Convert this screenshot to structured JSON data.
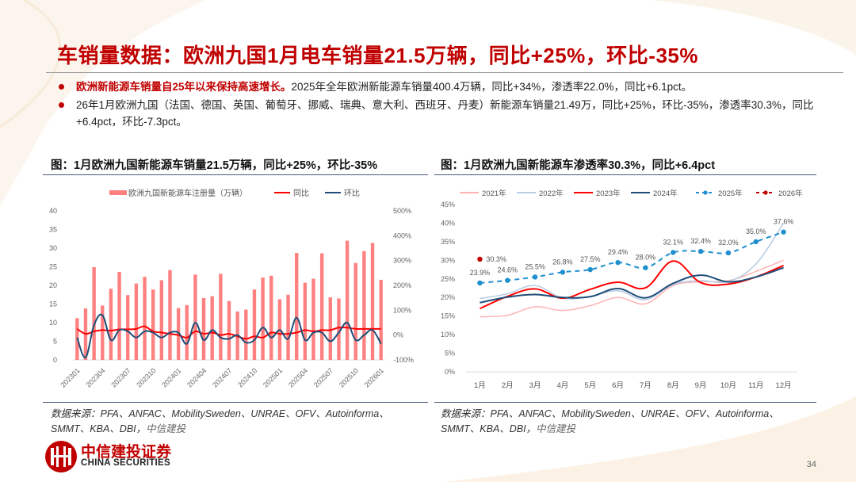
{
  "page": {
    "title": "车销量数据：欧洲九国1月电车销量21.5万辆，同比+25%，环比-35%",
    "page_number": "34",
    "colors": {
      "brand_red": "#c00000",
      "rule": "#4a5a7a"
    }
  },
  "bullets": [
    {
      "highlight": "欧洲新能源车销量自25年以来保持高速增长。",
      "text": "2025年全年欧洲新能源车销量400.4万辆，同比+34%，渗透率22.0%，同比+6.1pct。"
    },
    {
      "highlight": "",
      "text": "26年1月欧洲九国（法国、德国、英国、葡萄牙、挪威、瑞典、意大利、西班牙、丹麦）新能源车销量21.49万，同比+25%，环比-35%，渗透率30.3%，同比+6.4pct，环比-7.3pct。"
    }
  ],
  "left_figure": {
    "title": "图：1月欧洲九国新能源车销量21.5万辆，同比+25%，环比-35%",
    "source_prefix": "数据来源：PFA、ANFAC、MobilitySweden、UNRAE、OFV、Autoinforma、SMMT、KBA、DBI，",
    "source_suffix": "中信建投"
  },
  "right_figure": {
    "title": "图：1月欧洲九国新能源车渗透率30.3%，同比+6.4pct",
    "source_prefix": "数据来源：PFA、ANFAC、MobilitySweden、UNRAE、OFV、Autoinforma、SMMT、KBA、DBI，",
    "source_suffix": "中信建投"
  },
  "logo": {
    "cn": "中信建投证券",
    "en": "CHINA SECURITIES"
  },
  "chart_data": [
    {
      "type": "bar",
      "title": "图：1月欧洲九国新能源车销量21.5万辆，同比+25%，环比-35%",
      "legend_position": "top",
      "categories": [
        "202301",
        "202302",
        "202303",
        "202304",
        "202305",
        "202306",
        "202307",
        "202308",
        "202309",
        "202310",
        "202311",
        "202312",
        "202401",
        "202402",
        "202403",
        "202404",
        "202405",
        "202406",
        "202407",
        "202408",
        "202409",
        "202410",
        "202411",
        "202412",
        "202501",
        "202502",
        "202503",
        "202504",
        "202505",
        "202506",
        "202507",
        "202508",
        "202509",
        "202510",
        "202511",
        "202512",
        "202601"
      ],
      "tick_labels": [
        "202301",
        "202304",
        "202307",
        "202310",
        "202401",
        "202404",
        "202407",
        "202410",
        "202501",
        "202504",
        "202507",
        "202510",
        "202601"
      ],
      "ylim": [
        0,
        40
      ],
      "yticks": [
        "0",
        "5",
        "10",
        "15",
        "20",
        "25",
        "30",
        "35",
        "40"
      ],
      "y2lim": [
        -100,
        500
      ],
      "y2ticks": [
        "-100%",
        "0%",
        "100%",
        "200%",
        "300%",
        "400%",
        "500%"
      ],
      "series": [
        {
          "name": "欧洲九国新能源车注册量（万辆）",
          "type": "bar",
          "axis": "left",
          "color": "#ff8080",
          "values": [
            11.2,
            13.8,
            24.9,
            14.6,
            19.1,
            23.6,
            17.4,
            20.5,
            22.3,
            18.9,
            21.4,
            24.1,
            13.9,
            14.7,
            22.9,
            16.6,
            17.1,
            23.1,
            15.8,
            13.0,
            13.5,
            18.9,
            22.1,
            22.6,
            16.3,
            17.5,
            28.7,
            20.7,
            21.8,
            28.6,
            16.8,
            16.5,
            32.0,
            26.0,
            29.2,
            31.4,
            21.5
          ]
        },
        {
          "name": "同比",
          "type": "line",
          "axis": "right",
          "color": "#ff0000",
          "values": [
            25,
            5,
            15,
            20,
            18,
            23,
            23,
            25,
            35,
            15,
            10,
            5,
            0,
            -10,
            15,
            5,
            10,
            0,
            5,
            -5,
            -15,
            -5,
            -10,
            10,
            5,
            5,
            10,
            20,
            15,
            20,
            20,
            30,
            30,
            25,
            25,
            25,
            25
          ]
        },
        {
          "name": "环比",
          "type": "line",
          "axis": "right",
          "color": "#1f4e79",
          "values": [
            -10,
            -90,
            40,
            80,
            -20,
            20,
            15,
            -10,
            15,
            10,
            -10,
            10,
            10,
            -35,
            50,
            -20,
            20,
            -10,
            -15,
            0,
            -30,
            -20,
            30,
            -10,
            20,
            -15,
            70,
            -20,
            10,
            10,
            -25,
            10,
            50,
            -20,
            0,
            20,
            -35
          ]
        }
      ]
    },
    {
      "type": "line",
      "title": "图：1月欧洲九国新能源车渗透率30.3%，同比+6.4pct",
      "legend_position": "top",
      "categories": [
        "1月",
        "2月",
        "3月",
        "4月",
        "5月",
        "6月",
        "7月",
        "8月",
        "9月",
        "10月",
        "11月",
        "12月"
      ],
      "ylim": [
        0,
        45
      ],
      "yticks": [
        "0%",
        "5%",
        "10%",
        "15%",
        "20%",
        "25%",
        "30%",
        "35%",
        "40%",
        "45%"
      ],
      "series": [
        {
          "name": "2021年",
          "color": "#ffb3b3",
          "style": "solid",
          "values": [
            14.8,
            15.2,
            17.5,
            16.5,
            17.8,
            20.0,
            18.3,
            23.2,
            24.2,
            24.5,
            27.0,
            30.0
          ]
        },
        {
          "name": "2022年",
          "color": "#b8cce4",
          "style": "solid",
          "values": [
            19.7,
            21.0,
            23.2,
            19.8,
            20.3,
            21.8,
            19.4,
            23.5,
            24.5,
            24.3,
            29.0,
            40.0
          ]
        },
        {
          "name": "2023年",
          "color": "#ff0000",
          "style": "solid",
          "values": [
            17.0,
            20.3,
            22.3,
            19.8,
            22.2,
            24.1,
            22.6,
            29.8,
            24.0,
            23.6,
            25.5,
            28.6
          ]
        },
        {
          "name": "2024年",
          "color": "#1f4e79",
          "style": "solid",
          "values": [
            18.6,
            20.1,
            20.8,
            20.0,
            20.2,
            22.4,
            19.9,
            23.8,
            26.0,
            24.2,
            25.5,
            28.0
          ]
        },
        {
          "name": "2025年",
          "color": "#1f8fce",
          "style": "dashed",
          "markers": true,
          "values": [
            23.9,
            24.6,
            25.5,
            26.8,
            27.5,
            29.4,
            28.0,
            32.1,
            32.4,
            32.0,
            35.0,
            37.6
          ],
          "labels": [
            "23.9%",
            "24.6%",
            "25.5%",
            "26.8%",
            "27.5%",
            "29.4%",
            "28.0%",
            "32.1%",
            "32.4%",
            "32.0%",
            "35.0%",
            "37.6%"
          ]
        },
        {
          "name": "2026年",
          "color": "#c00000",
          "style": "dashed",
          "markers": true,
          "values": [
            30.3
          ],
          "labels": [
            "30.3%"
          ]
        }
      ]
    }
  ]
}
